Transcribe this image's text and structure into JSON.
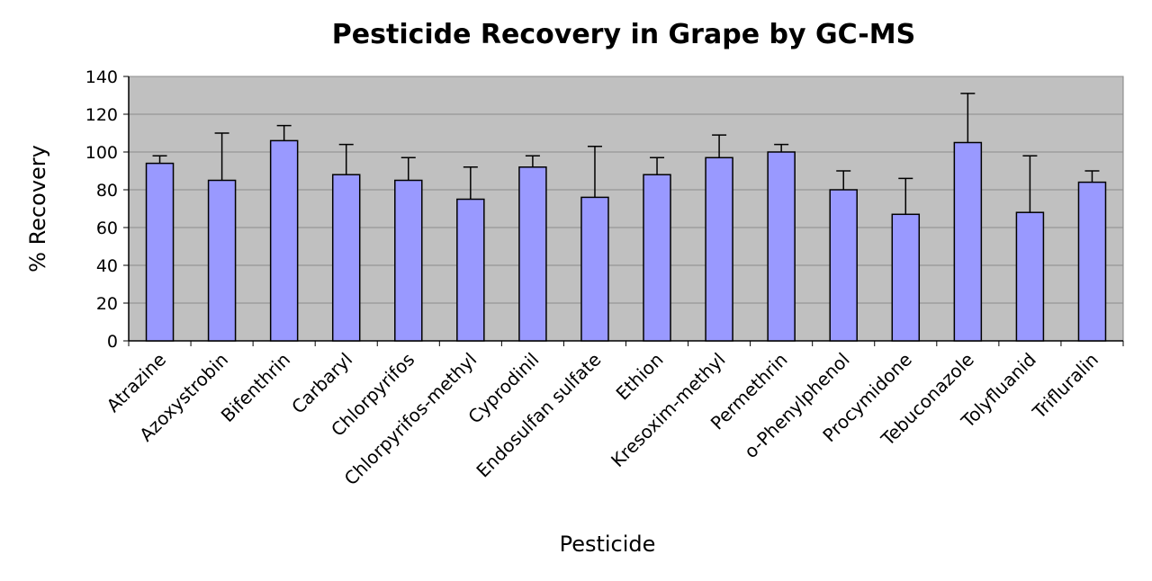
{
  "chart_data": {
    "type": "bar",
    "title": "Pesticide Recovery in Grape by GC-MS",
    "xlabel": "Pesticide",
    "ylabel": "% Recovery",
    "ylim": [
      0,
      140
    ],
    "yticks": [
      0,
      20,
      40,
      60,
      80,
      100,
      120,
      140
    ],
    "grid": true,
    "legend": "none",
    "colors": {
      "bar": "#9999ff",
      "plot_bg": "#c0c0c0",
      "grid": "#8c8c8c"
    },
    "categories": [
      "Atrazine",
      "Azoxystrobin",
      "Bifenthrin",
      "Carbaryl",
      "Chlorpyrifos",
      "Chlorpyrifos-methyl",
      "Cyprodinil",
      "Endosulfan sulfate",
      "Ethion",
      "Kresoxim-methyl",
      "Permethrin",
      "o-Phenylphenol",
      "Procymidone",
      "Tebuconazole",
      "Tolyfluanid",
      "Trifluralin"
    ],
    "values": [
      94,
      85,
      106,
      88,
      85,
      75,
      92,
      76,
      88,
      97,
      100,
      80,
      67,
      105,
      68,
      84
    ],
    "error_upper": [
      98,
      110,
      114,
      104,
      97,
      92,
      98,
      103,
      97,
      109,
      104,
      90,
      86,
      131,
      98,
      90
    ]
  }
}
